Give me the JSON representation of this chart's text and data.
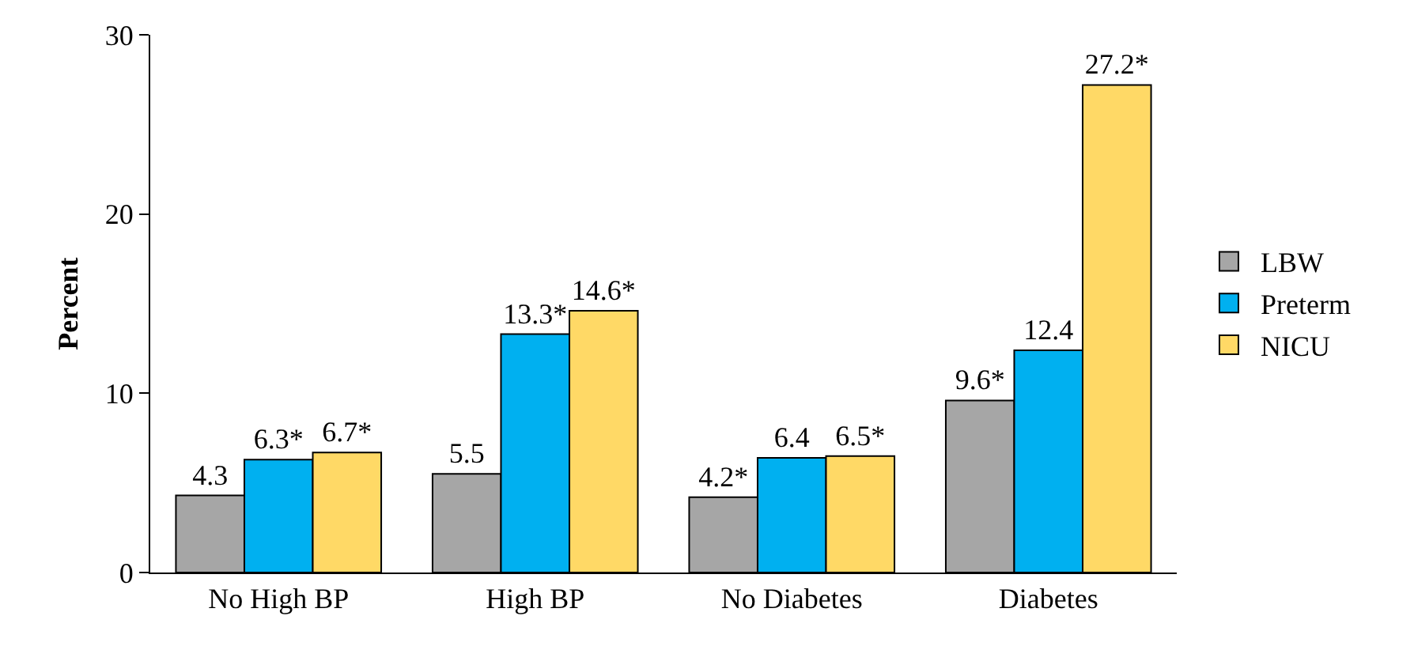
{
  "chart_data": {
    "type": "bar",
    "ylabel": "Percent",
    "categories": [
      "No High BP",
      "High BP",
      "No Diabetes",
      "Diabetes"
    ],
    "series": [
      {
        "name": "LBW",
        "color": "#a6a6a6",
        "values": [
          4.3,
          5.5,
          4.2,
          9.6
        ],
        "value_labels": [
          "4.3",
          "5.5",
          "4.2*",
          "9.6*"
        ]
      },
      {
        "name": "Preterm",
        "color": "#00b0f0",
        "values": [
          6.3,
          13.3,
          6.4,
          12.4
        ],
        "value_labels": [
          "6.3*",
          "13.3*",
          "6.4",
          "12.4"
        ]
      },
      {
        "name": "NICU",
        "color": "#ffd966",
        "values": [
          6.7,
          14.6,
          6.5,
          27.2
        ],
        "value_labels": [
          "6.7*",
          "14.6*",
          "6.5*",
          "27.2*"
        ]
      }
    ],
    "ylim": [
      0,
      30
    ],
    "yticks": [
      0,
      10,
      20,
      30
    ],
    "grid": false,
    "legend": "right"
  }
}
